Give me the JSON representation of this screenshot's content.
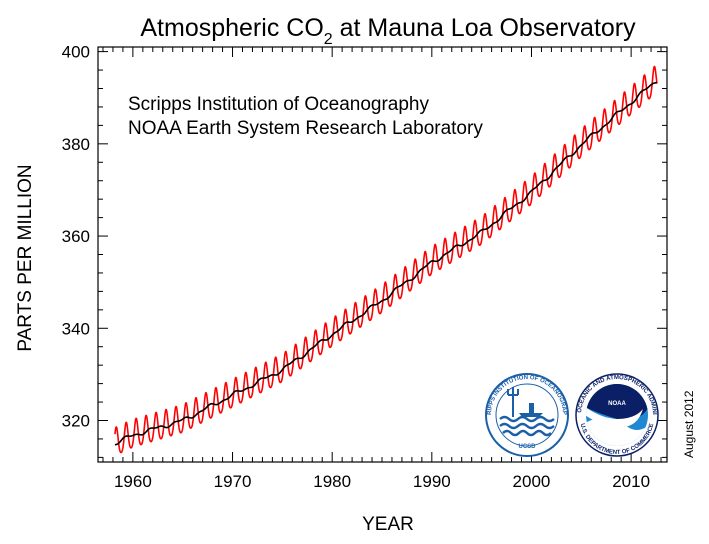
{
  "chart_data": {
    "type": "line",
    "title_main": "Atmospheric CO",
    "title_sub": "2",
    "title_rest": " at Mauna Loa Observatory",
    "xlabel": "YEAR",
    "ylabel": "PARTS PER MILLION",
    "xlim": [
      1956.5,
      2013.6
    ],
    "ylim": [
      311,
      401
    ],
    "x_ticks": [
      1960,
      1970,
      1980,
      1990,
      2000,
      2010
    ],
    "y_ticks": [
      320,
      340,
      360,
      380,
      400
    ],
    "annotations": [
      "Scripps Institution of Oceanography",
      "NOAA Earth System Research Laboratory"
    ],
    "date_note": "August 2012",
    "grid": false,
    "series": [
      {
        "role": "monthly",
        "color": "#ff0000",
        "x_range": [
          1958.2,
          2012.6
        ],
        "seasonal_amplitude": 3.0
      },
      {
        "role": "trend",
        "color": "#000000",
        "x": [
          1958.2,
          1960,
          1965,
          1970,
          1975,
          1980,
          1985,
          1990,
          1995,
          2000,
          2005,
          2010,
          2012.6
        ],
        "values": [
          315.0,
          316.8,
          320.0,
          325.5,
          331.0,
          338.7,
          346.0,
          354.3,
          360.8,
          369.5,
          379.8,
          389.0,
          393.8
        ]
      }
    ]
  },
  "logos": {
    "scripps": {
      "text": "SCRIPPS INSTITUTION OF OCEANOGRAPHY",
      "bottom": "UCSD",
      "colors": [
        "#1a5fa8",
        "#ffffff"
      ]
    },
    "noaa": {
      "text": "NOAA",
      "ring_text": "NATIONAL OCEANIC AND ATMOSPHERIC ADMINISTRATION",
      "bottom": "U.S. DEPARTMENT OF COMMERCE",
      "colors": [
        "#0b1f66",
        "#1e88d2"
      ]
    }
  }
}
